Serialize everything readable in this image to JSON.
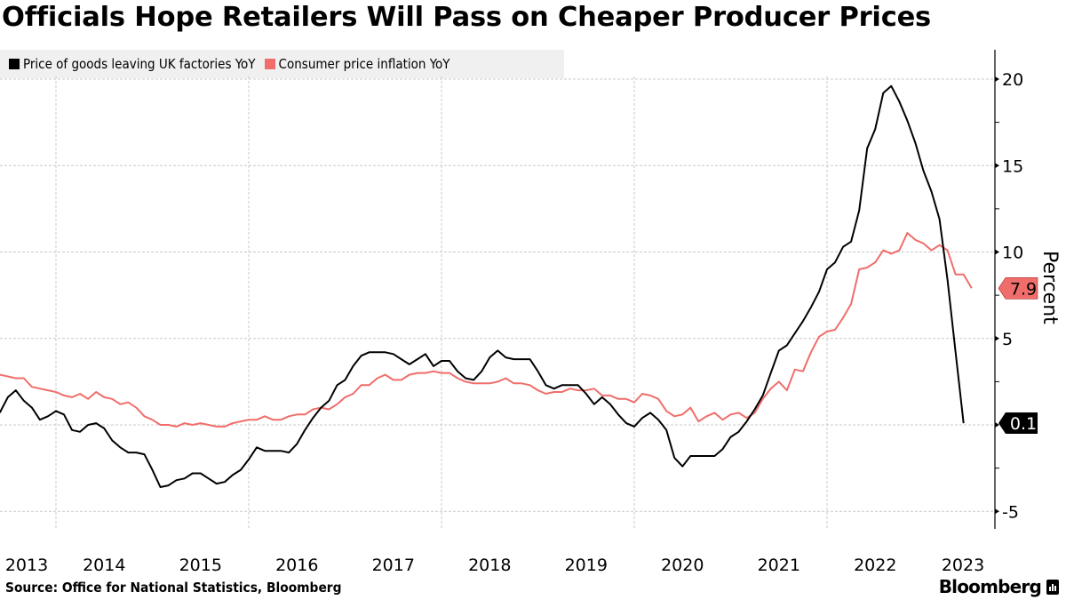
{
  "title": "Officials Hope Retailers Will Pass on Cheaper Producer Prices",
  "source": "Source: Office for National Statistics, Bloomberg",
  "brand": "Bloomberg",
  "chart_data": {
    "type": "line",
    "title": "Officials Hope Retailers Will Pass on Cheaper Producer Prices",
    "xlabel": "",
    "ylabel": "Percent",
    "y_axis_side": "right",
    "ylim": [
      -6,
      22
    ],
    "yticks": [
      -5,
      0,
      5,
      10,
      15,
      20
    ],
    "grid": true,
    "legend_position": "top-left",
    "x_start": "2013-06",
    "x_end": "2023-06",
    "x_frequency": "monthly",
    "xtick_labels": [
      "2013",
      "2014",
      "2015",
      "2016",
      "2017",
      "2018",
      "2019",
      "2020",
      "2021",
      "2022",
      "2023"
    ],
    "series": [
      {
        "name": "Price of goods leaving UK factories YoY",
        "color": "#000000",
        "last_value_label": "0.1",
        "values": [
          0.7,
          1.6,
          2.0,
          1.4,
          1.0,
          0.3,
          0.5,
          0.8,
          0.6,
          -0.3,
          -0.4,
          0.0,
          0.1,
          -0.2,
          -0.9,
          -1.3,
          -1.6,
          -1.6,
          -1.7,
          -2.6,
          -3.6,
          -3.5,
          -3.2,
          -3.1,
          -2.8,
          -2.8,
          -3.1,
          -3.4,
          -3.3,
          -2.9,
          -2.6,
          -2.0,
          -1.3,
          -1.5,
          -1.5,
          -1.5,
          -1.6,
          -1.1,
          -0.3,
          0.4,
          1.0,
          1.4,
          2.3,
          2.6,
          3.4,
          4.0,
          4.2,
          4.2,
          4.2,
          4.1,
          3.8,
          3.5,
          3.8,
          4.1,
          3.4,
          3.7,
          3.7,
          3.1,
          2.7,
          2.6,
          3.1,
          3.9,
          4.3,
          3.9,
          3.8,
          3.8,
          3.8,
          3.1,
          2.3,
          2.1,
          2.3,
          2.3,
          2.3,
          1.8,
          1.2,
          1.6,
          1.2,
          0.6,
          0.1,
          -0.1,
          0.4,
          0.7,
          0.3,
          -0.3,
          -1.9,
          -2.4,
          -1.8,
          -1.8,
          -1.8,
          -1.8,
          -1.4,
          -0.7,
          -0.4,
          0.2,
          0.9,
          1.7,
          3.0,
          4.3,
          4.6,
          5.3,
          6.0,
          6.8,
          7.7,
          9.0,
          9.4,
          10.3,
          10.6,
          12.4,
          16.0,
          17.1,
          19.2,
          19.6,
          18.7,
          17.6,
          16.3,
          14.7,
          13.5,
          11.9,
          8.4,
          4.2,
          0.1
        ]
      },
      {
        "name": "Consumer price inflation YoY",
        "color": "#ef6e6b",
        "last_value_label": "7.9",
        "values": [
          2.9,
          2.8,
          2.7,
          2.7,
          2.2,
          2.1,
          2.0,
          1.9,
          1.7,
          1.6,
          1.8,
          1.5,
          1.9,
          1.6,
          1.5,
          1.2,
          1.3,
          1.0,
          0.5,
          0.3,
          0.0,
          0.0,
          -0.1,
          0.1,
          0.0,
          0.1,
          0.0,
          -0.1,
          -0.1,
          0.1,
          0.2,
          0.3,
          0.3,
          0.5,
          0.3,
          0.3,
          0.5,
          0.6,
          0.6,
          0.9,
          1.0,
          0.9,
          1.2,
          1.6,
          1.8,
          2.3,
          2.3,
          2.7,
          2.9,
          2.6,
          2.6,
          2.9,
          3.0,
          3.0,
          3.1,
          3.0,
          3.0,
          2.7,
          2.5,
          2.4,
          2.4,
          2.4,
          2.5,
          2.7,
          2.4,
          2.4,
          2.3,
          2.0,
          1.8,
          1.9,
          1.9,
          2.1,
          2.0,
          2.0,
          2.1,
          1.7,
          1.7,
          1.5,
          1.5,
          1.3,
          1.8,
          1.7,
          1.5,
          0.8,
          0.5,
          0.6,
          1.0,
          0.2,
          0.5,
          0.7,
          0.3,
          0.6,
          0.7,
          0.4,
          0.7,
          1.5,
          2.1,
          2.5,
          2.0,
          3.2,
          3.1,
          4.2,
          5.1,
          5.4,
          5.5,
          6.2,
          7.0,
          9.0,
          9.1,
          9.4,
          10.1,
          9.9,
          10.1,
          11.1,
          10.7,
          10.5,
          10.1,
          10.4,
          10.1,
          8.7,
          8.7,
          7.9
        ]
      }
    ]
  }
}
